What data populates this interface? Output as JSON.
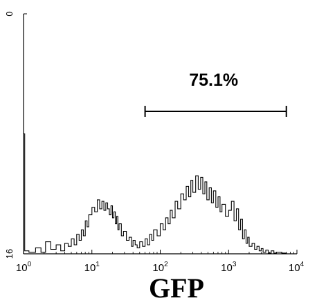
{
  "chart_data": {
    "type": "line",
    "title": "",
    "xlabel": "GFP",
    "ylabel": "",
    "x_scale": "log",
    "xlim": [
      1,
      10000
    ],
    "ylim": [
      0,
      16
    ],
    "y_ticks": [
      "0",
      "16"
    ],
    "x_ticks": [
      {
        "base": "10",
        "exp": "0",
        "value": 1
      },
      {
        "base": "10",
        "exp": "1",
        "value": 10
      },
      {
        "base": "10",
        "exp": "2",
        "value": 100
      },
      {
        "base": "10",
        "exp": "3",
        "value": 1000
      },
      {
        "base": "10",
        "exp": "4",
        "value": 10000
      }
    ],
    "gate": {
      "label": "75.1%",
      "x_start": 60,
      "x_end": 7000,
      "y": 9.5
    },
    "series": [
      {
        "x": [
          1.0,
          1.04,
          1.2,
          1.5,
          1.8,
          2.1,
          2.5,
          3.0,
          3.5,
          4.0,
          4.5,
          5.0,
          5.5,
          6.0,
          6.5,
          7.0,
          7.5,
          8.0,
          8.5,
          9.0,
          10,
          11,
          12,
          13,
          14,
          15,
          16,
          17,
          18,
          19,
          20,
          21,
          22,
          23,
          24,
          25,
          27,
          29,
          32,
          35,
          38,
          40,
          43,
          46,
          50,
          55,
          60,
          65,
          70,
          75,
          80,
          90,
          100,
          110,
          120,
          130,
          140,
          150,
          165,
          180,
          200,
          220,
          240,
          260,
          280,
          300,
          330,
          360,
          390,
          420,
          450,
          480,
          520,
          560,
          600,
          650,
          700,
          750,
          800,
          900,
          1000,
          1100,
          1200,
          1300,
          1400,
          1500,
          1600,
          1700,
          1800,
          1900,
          2000,
          2200,
          2400,
          2600,
          2800,
          3000,
          3200,
          3500,
          3800,
          4200,
          4600,
          5000,
          6000,
          7000
        ],
        "values": [
          8.0,
          0.2,
          0.1,
          0.4,
          0.1,
          0.8,
          0.3,
          0.6,
          0.2,
          0.7,
          0.5,
          1.0,
          0.6,
          1.3,
          0.9,
          1.6,
          1.2,
          2.2,
          1.8,
          2.6,
          3.1,
          2.8,
          3.6,
          3.0,
          3.5,
          2.9,
          3.4,
          3.0,
          2.6,
          3.2,
          2.4,
          2.8,
          2.0,
          2.5,
          1.6,
          2.0,
          1.2,
          1.5,
          0.9,
          1.1,
          0.5,
          0.9,
          0.6,
          0.4,
          0.8,
          0.5,
          1.0,
          0.6,
          1.3,
          0.9,
          1.6,
          1.2,
          2.0,
          1.6,
          2.4,
          2.0,
          2.9,
          2.4,
          3.5,
          3.0,
          4.0,
          3.6,
          4.5,
          3.8,
          4.9,
          4.1,
          5.2,
          4.3,
          5.1,
          4.0,
          4.8,
          3.6,
          4.4,
          3.4,
          4.2,
          3.1,
          3.8,
          2.8,
          3.3,
          2.5,
          2.9,
          3.5,
          2.2,
          3.0,
          1.6,
          2.3,
          1.0,
          1.6,
          0.7,
          1.1,
          0.5,
          0.7,
          0.3,
          0.5,
          0.2,
          0.35,
          0.1,
          0.25,
          0.05,
          0.2,
          0.05,
          0.1,
          0.05,
          0.0
        ]
      }
    ]
  }
}
